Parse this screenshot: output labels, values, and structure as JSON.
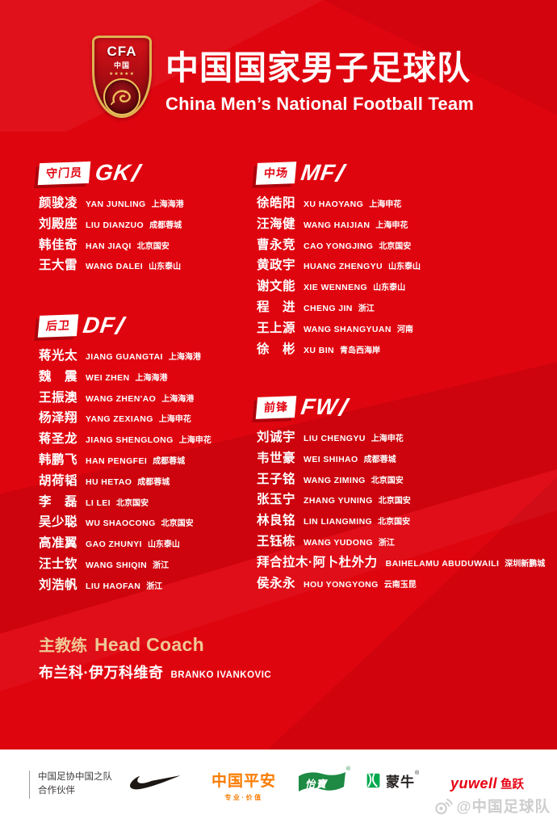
{
  "header": {
    "title_cn": "中国国家男子足球队",
    "title_en": "China Men’s National Football Team",
    "logo": {
      "abbr": "CFA",
      "cn": "中国",
      "stars": "★★★★★"
    }
  },
  "sections": [
    {
      "label_cn": "守门员",
      "code": "GK",
      "players": [
        {
          "name": "颜骏凌",
          "pinyin": "YAN JUNLING",
          "club": "上海海港"
        },
        {
          "name": "刘殿座",
          "pinyin": "LIU DIANZUO",
          "club": "成都蓉城"
        },
        {
          "name": "韩佳奇",
          "pinyin": "HAN JIAQI",
          "club": "北京国安"
        },
        {
          "name": "王大雷",
          "pinyin": "WANG DALEI",
          "club": "山东泰山"
        }
      ]
    },
    {
      "label_cn": "后卫",
      "code": "DF",
      "players": [
        {
          "name": "蒋光太",
          "pinyin": "JIANG GUANGTAI",
          "club": "上海海港"
        },
        {
          "name": "魏　震",
          "pinyin": "WEI ZHEN",
          "club": "上海海港"
        },
        {
          "name": "王振澳",
          "pinyin": "WANG ZHEN'AO",
          "club": "上海海港"
        },
        {
          "name": "杨泽翔",
          "pinyin": "YANG ZEXIANG",
          "club": "上海申花"
        },
        {
          "name": "蒋圣龙",
          "pinyin": "JIANG SHENGLONG",
          "club": "上海申花"
        },
        {
          "name": "韩鹏飞",
          "pinyin": "HAN PENGFEI",
          "club": "成都蓉城"
        },
        {
          "name": "胡荷韬",
          "pinyin": "HU HETAO",
          "club": "成都蓉城"
        },
        {
          "name": "李　磊",
          "pinyin": "LI LEI",
          "club": "北京国安"
        },
        {
          "name": "吴少聪",
          "pinyin": "WU SHAOCONG",
          "club": "北京国安"
        },
        {
          "name": "高准翼",
          "pinyin": "GAO ZHUNYI",
          "club": "山东泰山"
        },
        {
          "name": "汪士钦",
          "pinyin": "WANG SHIQIN",
          "club": "浙江"
        },
        {
          "name": "刘浩帆",
          "pinyin": "LIU HAOFAN",
          "club": "浙江"
        }
      ]
    },
    {
      "label_cn": "中场",
      "code": "MF",
      "players": [
        {
          "name": "徐皓阳",
          "pinyin": "XU HAOYANG",
          "club": "上海申花"
        },
        {
          "name": "汪海健",
          "pinyin": "WANG HAIJIAN",
          "club": "上海申花"
        },
        {
          "name": "曹永竞",
          "pinyin": "CAO YONGJING",
          "club": "北京国安"
        },
        {
          "name": "黄政宇",
          "pinyin": "HUANG ZHENGYU",
          "club": "山东泰山"
        },
        {
          "name": "谢文能",
          "pinyin": "XIE WENNENG",
          "club": "山东泰山"
        },
        {
          "name": "程　进",
          "pinyin": "CHENG JIN",
          "club": "浙江"
        },
        {
          "name": "王上源",
          "pinyin": "WANG SHANGYUAN",
          "club": "河南"
        },
        {
          "name": "徐　彬",
          "pinyin": "XU BIN",
          "club": "青岛西海岸"
        }
      ]
    },
    {
      "label_cn": "前锋",
      "code": "FW",
      "players": [
        {
          "name": "刘诚宇",
          "pinyin": "LIU CHENGYU",
          "club": "上海申花"
        },
        {
          "name": "韦世豪",
          "pinyin": "WEI SHIHAO",
          "club": "成都蓉城"
        },
        {
          "name": "王子铭",
          "pinyin": "WANG ZIMING",
          "club": "北京国安"
        },
        {
          "name": "张玉宁",
          "pinyin": "ZHANG YUNING",
          "club": "北京国安"
        },
        {
          "name": "林良铭",
          "pinyin": "LIN LIANGMING",
          "club": "北京国安"
        },
        {
          "name": "王钰栋",
          "pinyin": "WANG YUDONG",
          "club": "浙江"
        },
        {
          "name": "拜合拉木·阿卜杜外力",
          "pinyin": "BAIHELAMU ABUDUWAILI",
          "club": "深圳新鹏城"
        },
        {
          "name": "侯永永",
          "pinyin": "HOU YONGYONG",
          "club": "云南玉昆"
        }
      ]
    }
  ],
  "coach": {
    "label_cn": "主教练",
    "label_en": "Head Coach",
    "name_cn": "布兰科·伊万科维奇",
    "name_en": "BRANKO IVANKOVIC"
  },
  "sponsors": {
    "partner_line1": "中国足协中国之队",
    "partner_line2": "合作伙伴",
    "pingan": {
      "name": "中国平安",
      "slogan": "专业·价值"
    },
    "cestbon": {
      "text": "怡寶",
      "reg": "®"
    },
    "mengniu": {
      "text": "蒙牛",
      "reg": "®"
    },
    "yuwell": {
      "latin": "yuwell",
      "cn": "鱼跃"
    }
  },
  "watermark": {
    "text": "@中国足球队"
  },
  "colors": {
    "background_red": "#DF050F",
    "accent_red": "#E30613",
    "coach_gold": "#EFC894",
    "pingan_orange": "#F97B00",
    "cestbon_green": "#1E8A44",
    "mengniu_green": "#00A94E",
    "yuwell_red": "#E60012"
  }
}
